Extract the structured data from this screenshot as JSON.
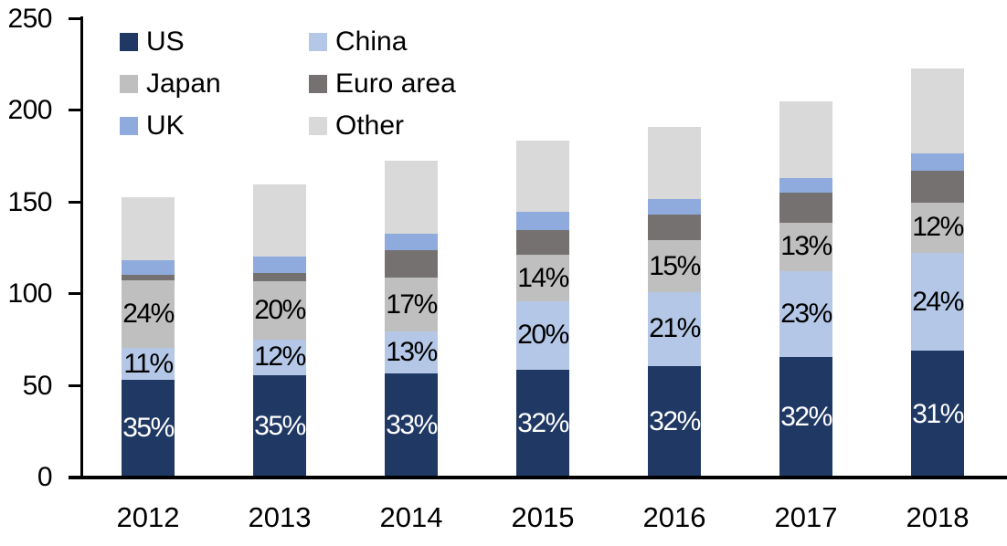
{
  "chart_data": {
    "type": "bar",
    "stacked": true,
    "title": "",
    "xlabel": "",
    "ylabel": "",
    "ylim": [
      0,
      250
    ],
    "y_ticks": [
      "0",
      "50",
      "100",
      "150",
      "200",
      "250"
    ],
    "grid": false,
    "legend_position": "top-left",
    "legend_columns": 2,
    "categories": [
      "2012",
      "2013",
      "2014",
      "2015",
      "2016",
      "2017",
      "2018"
    ],
    "totals": [
      153,
      160,
      173,
      184,
      191,
      205,
      223
    ],
    "series": [
      {
        "name": "US",
        "color": "#1F3864",
        "label_color": "#FFFFFF",
        "values": [
          53.5,
          56,
          57,
          59,
          61,
          65.5,
          69
        ],
        "pct_labels": [
          "35%",
          "35%",
          "33%",
          "32%",
          "32%",
          "32%",
          "31%"
        ]
      },
      {
        "name": "China",
        "color": "#B4C7E7",
        "label_color": "#000000",
        "values": [
          17,
          19,
          22.5,
          37,
          40,
          47,
          53.5
        ],
        "pct_labels": [
          "11%",
          "12%",
          "13%",
          "20%",
          "21%",
          "23%",
          "24%"
        ]
      },
      {
        "name": "Japan",
        "color": "#BFBFBF",
        "label_color": "#000000",
        "values": [
          37,
          32,
          29.5,
          25.5,
          28.5,
          26.5,
          27.5
        ],
        "pct_labels": [
          "24%",
          "20%",
          "17%",
          "14%",
          "15%",
          "13%",
          "12%"
        ]
      },
      {
        "name": "Euro area",
        "color": "#767171",
        "label_color": "",
        "values": [
          3,
          4.5,
          15,
          13.5,
          14,
          16.5,
          17.5
        ],
        "pct_labels": []
      },
      {
        "name": "UK",
        "color": "#8FAADC",
        "label_color": "",
        "values": [
          8,
          9,
          9,
          10,
          8.5,
          8,
          9.5
        ],
        "pct_labels": []
      },
      {
        "name": "Other",
        "color": "#D9D9D9",
        "label_color": "",
        "values": [
          34.5,
          39.5,
          40,
          39,
          39,
          41.5,
          46
        ],
        "pct_labels": []
      }
    ]
  }
}
